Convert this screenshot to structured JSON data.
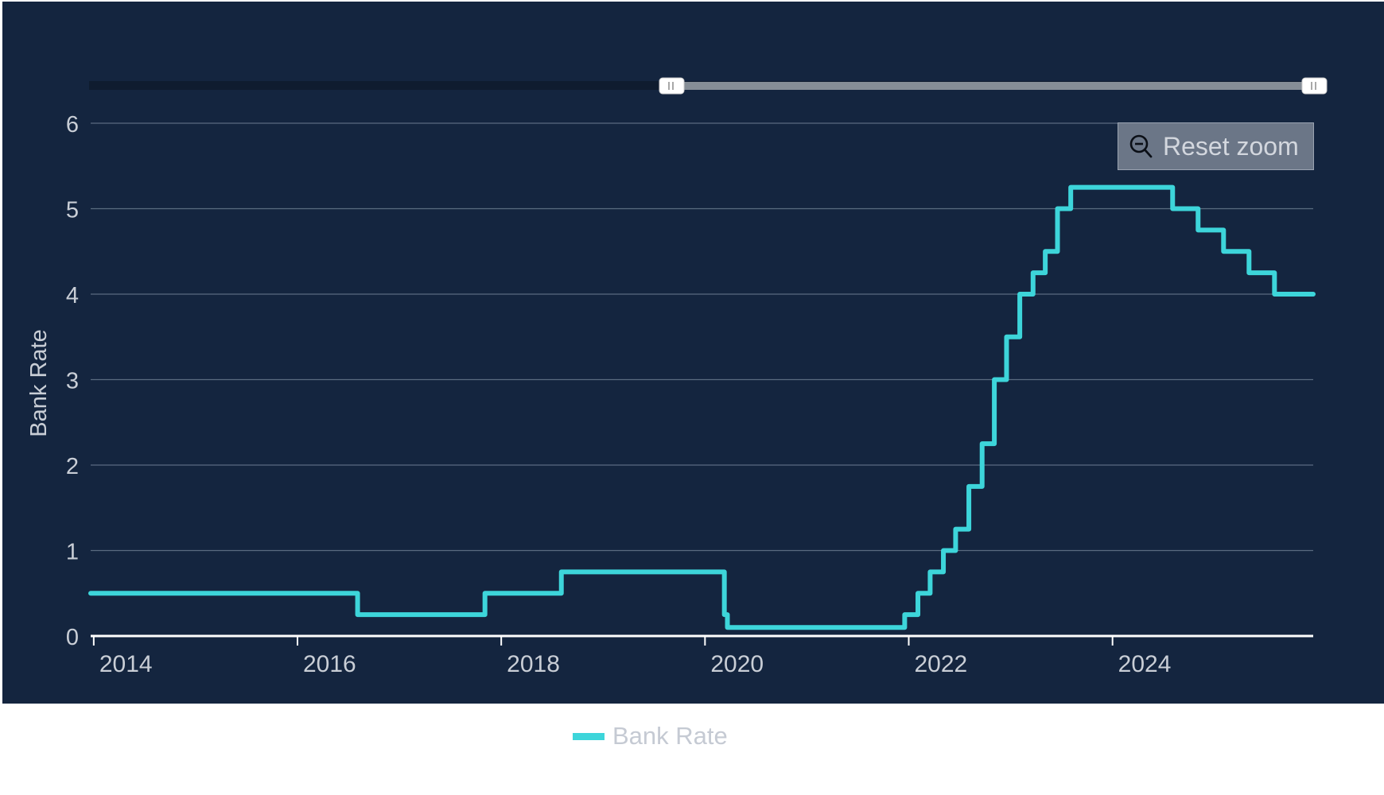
{
  "colors": {
    "background": "#14253f",
    "series": "#3dd5da",
    "grid": "#5a6b80",
    "axis_line": "#ffffff",
    "label": "#c9ced6",
    "navigator_track": "#0f1c2f",
    "navigator_selected": "#868e97",
    "reset_button_bg": "#6b7687"
  },
  "reset_zoom": {
    "label": "Reset zoom",
    "icon": "zoom-out-icon"
  },
  "legend": {
    "items": [
      {
        "label": "Bank Rate",
        "color": "#3dd5da"
      }
    ]
  },
  "navigator": {
    "handle_left_glyph": "II",
    "handle_right_glyph": "II"
  },
  "chart_data": {
    "type": "line",
    "step": true,
    "title": "",
    "xlabel": "",
    "ylabel": "Bank Rate",
    "xlim": [
      2013.97,
      2025.97
    ],
    "ylim": [
      0,
      6
    ],
    "yticks": [
      0,
      1,
      2,
      3,
      4,
      5,
      6
    ],
    "xticks": [
      2014,
      2016,
      2018,
      2020,
      2022,
      2024
    ],
    "xtick_labels": [
      "2014",
      "2016",
      "2018",
      "2020",
      "2022",
      "2024"
    ],
    "grid": true,
    "legend_position": "bottom-center",
    "series": [
      {
        "name": "Bank Rate",
        "x": [
          2013.97,
          2016.59,
          2017.84,
          2018.59,
          2020.19,
          2020.22,
          2021.96,
          2022.09,
          2022.21,
          2022.34,
          2022.46,
          2022.59,
          2022.72,
          2022.84,
          2022.96,
          2023.09,
          2023.22,
          2023.34,
          2023.46,
          2023.59,
          2024.59,
          2024.84,
          2025.09,
          2025.34,
          2025.59,
          2025.97
        ],
        "values": [
          0.5,
          0.25,
          0.5,
          0.75,
          0.25,
          0.1,
          0.25,
          0.5,
          0.75,
          1.0,
          1.25,
          1.75,
          2.25,
          3.0,
          3.5,
          4.0,
          4.25,
          4.5,
          5.0,
          5.25,
          5.0,
          4.75,
          4.5,
          4.25,
          4.0,
          4.0
        ]
      }
    ]
  }
}
